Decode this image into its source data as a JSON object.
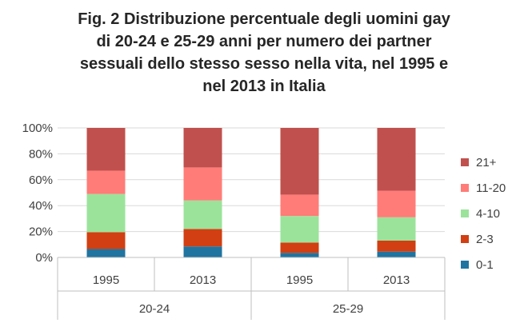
{
  "chart_data": {
    "type": "bar",
    "stacked": "percent",
    "title_lines": [
      "Fig. 2 Distribuzione percentuale degli uomini gay",
      "di 20-24 e 25-29 anni per numero dei partner",
      "sessuali dello stesso sesso nella vita, nel 1995 e",
      "nel 2013 in Italia"
    ],
    "categories": [
      "1995",
      "2013",
      "1995",
      "2013"
    ],
    "groups": [
      {
        "label": "20-24",
        "span": 2
      },
      {
        "label": "25-29",
        "span": 2
      }
    ],
    "ylim": [
      0,
      100
    ],
    "yticks": [
      "0%",
      "20%",
      "40%",
      "60%",
      "80%",
      "100%"
    ],
    "grid": true,
    "legend_position": "right",
    "series": [
      {
        "name": "0-1",
        "color": "#2074A0",
        "values": [
          6.5,
          8.5,
          3.5,
          4.5
        ]
      },
      {
        "name": "2-3",
        "color": "#D13F12",
        "values": [
          13,
          13.5,
          8,
          8.5
        ]
      },
      {
        "name": "4-10",
        "color": "#9BE39B",
        "values": [
          29.5,
          22,
          20.5,
          18
        ]
      },
      {
        "name": "11-20",
        "color": "#FF7C78",
        "values": [
          18,
          25.5,
          16.5,
          20.5
        ]
      },
      {
        "name": "21+",
        "color": "#C0504D",
        "values": [
          33,
          30.5,
          51.5,
          48.5
        ]
      }
    ]
  }
}
